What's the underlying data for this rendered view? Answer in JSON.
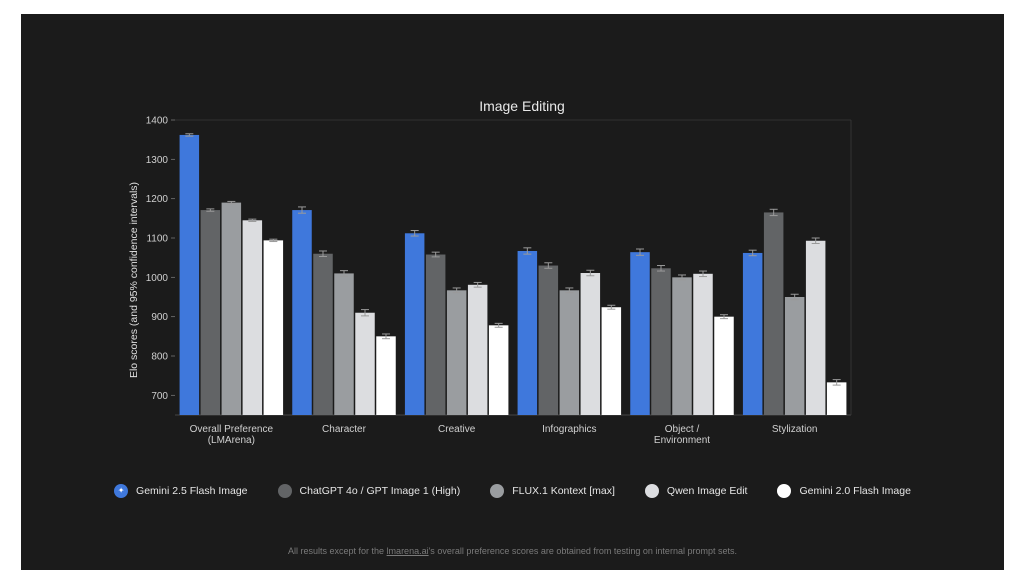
{
  "footnote": {
    "before": "All results except for the ",
    "link": "lmarena.ai",
    "after": "'s overall preference scores are obtained from testing on internal prompt sets."
  },
  "chart_data": {
    "type": "bar",
    "title": "Image Editing",
    "ylabel": "Elo scores (and 95% confidence intervals)",
    "ylim": [
      650,
      1400
    ],
    "yticks": [
      700,
      800,
      900,
      1000,
      1100,
      1200,
      1300,
      1400
    ],
    "grid": false,
    "legend_position": "bottom",
    "categories": [
      [
        "Overall Preference",
        "(LMArena)"
      ],
      [
        "Character"
      ],
      [
        "Creative"
      ],
      [
        "Infographics"
      ],
      [
        "Object /",
        "Environment"
      ],
      [
        "Stylization"
      ]
    ],
    "series": [
      {
        "name": "Gemini 2.5 Flash Image",
        "color": "#3f78dc",
        "icon": "gemini-sparkle-icon",
        "values": [
          1362,
          1171,
          1112,
          1067,
          1064,
          1062
        ],
        "ci": [
          3,
          8,
          7,
          8,
          8,
          7
        ]
      },
      {
        "name": "ChatGPT 4o / GPT Image 1 (High)",
        "color": "#626466",
        "values": [
          1171,
          1060,
          1058,
          1030,
          1023,
          1165
        ],
        "ci": [
          3,
          7,
          6,
          7,
          7,
          8
        ]
      },
      {
        "name": "FLUX.1 Kontext [max]",
        "color": "#9a9da0",
        "values": [
          1190,
          1010,
          967,
          967,
          1000,
          950
        ],
        "ci": [
          3,
          7,
          6,
          6,
          6,
          7
        ]
      },
      {
        "name": "Qwen Image Edit",
        "color": "#dcdde0",
        "values": [
          1145,
          910,
          981,
          1011,
          1009,
          1093
        ],
        "ci": [
          3,
          8,
          6,
          7,
          7,
          7
        ]
      },
      {
        "name": "Gemini 2.0 Flash Image",
        "color": "#ffffff",
        "values": [
          1094,
          850,
          878,
          924,
          900,
          733
        ],
        "ci": [
          3,
          6,
          5,
          5,
          5,
          7
        ]
      }
    ]
  }
}
